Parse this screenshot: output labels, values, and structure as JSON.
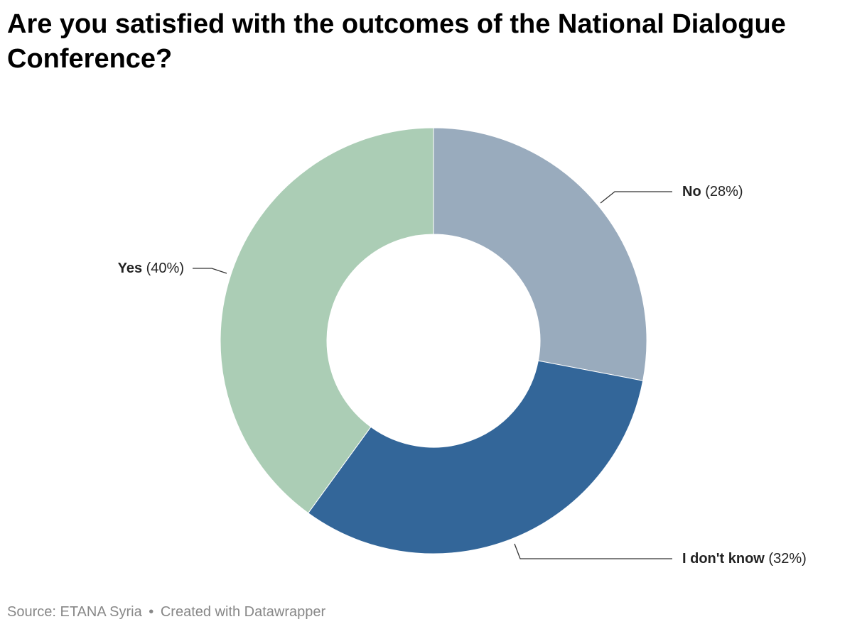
{
  "title": "Are you satisfied with the outcomes of the National Dialogue Conference?",
  "footer": {
    "source": "Source: ETANA Syria",
    "separator": "•",
    "credit": "Created with Datawrapper"
  },
  "chart_data": {
    "type": "pie",
    "donut": true,
    "title": "Are you satisfied with the outcomes of the National Dialogue Conference?",
    "slices": [
      {
        "label": "No",
        "percent_label": "(28%)",
        "value": 28,
        "color": "#99abbd"
      },
      {
        "label": "I don't know",
        "percent_label": "(32%)",
        "value": 32,
        "color": "#336699"
      },
      {
        "label": "Yes",
        "percent_label": "(40%)",
        "value": 40,
        "color": "#abcdb5"
      }
    ]
  }
}
